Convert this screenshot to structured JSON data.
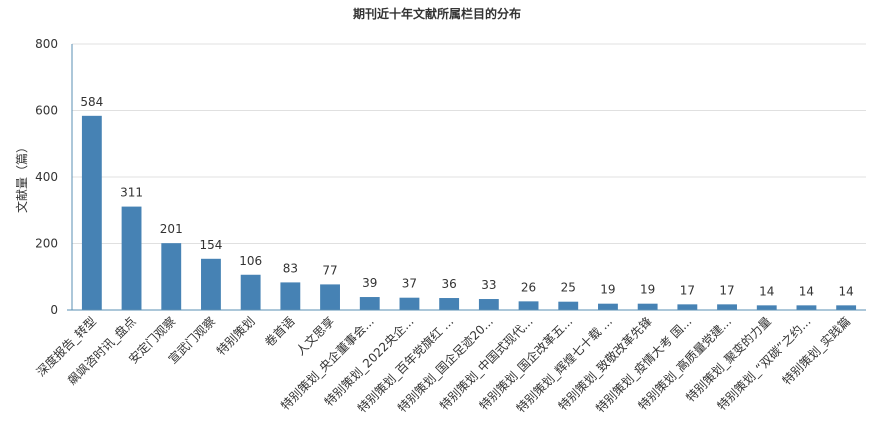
{
  "chart_data": {
    "type": "bar",
    "title": "期刊近十年文献所属栏目的分布",
    "xlabel": "",
    "ylabel": "文献量（篇）",
    "ylim": [
      0,
      800
    ],
    "yticks": [
      0,
      200,
      400,
      600,
      800
    ],
    "grid": true,
    "bar_color": "#4682b4",
    "categories": [
      "深度报告_转型",
      "飙飒咨时讯_盘点",
      "安定门观察",
      "宣武门观察",
      "特别策划",
      "卷首语",
      "人文思享",
      "特别策划_央企董事会...",
      "特别策划_2022央企...",
      "特别策划_百年党旗红 ...",
      "特别策划_国企足迹20...",
      "特别策划_中国式现代...",
      "特别策划_国企改革五...",
      "特别策划_辉煌七十载 ...",
      "特别策划_致敬改革先锋",
      "特别策划_疫情大考 国...",
      "特别策划_高质量党建...",
      "特别策划_聚变的力量",
      "特别策划_“双碳”之约...",
      "特别策划_实践篇"
    ],
    "values": [
      584,
      311,
      201,
      154,
      106,
      83,
      77,
      39,
      37,
      36,
      33,
      26,
      25,
      19,
      19,
      17,
      17,
      14,
      14,
      14
    ]
  }
}
